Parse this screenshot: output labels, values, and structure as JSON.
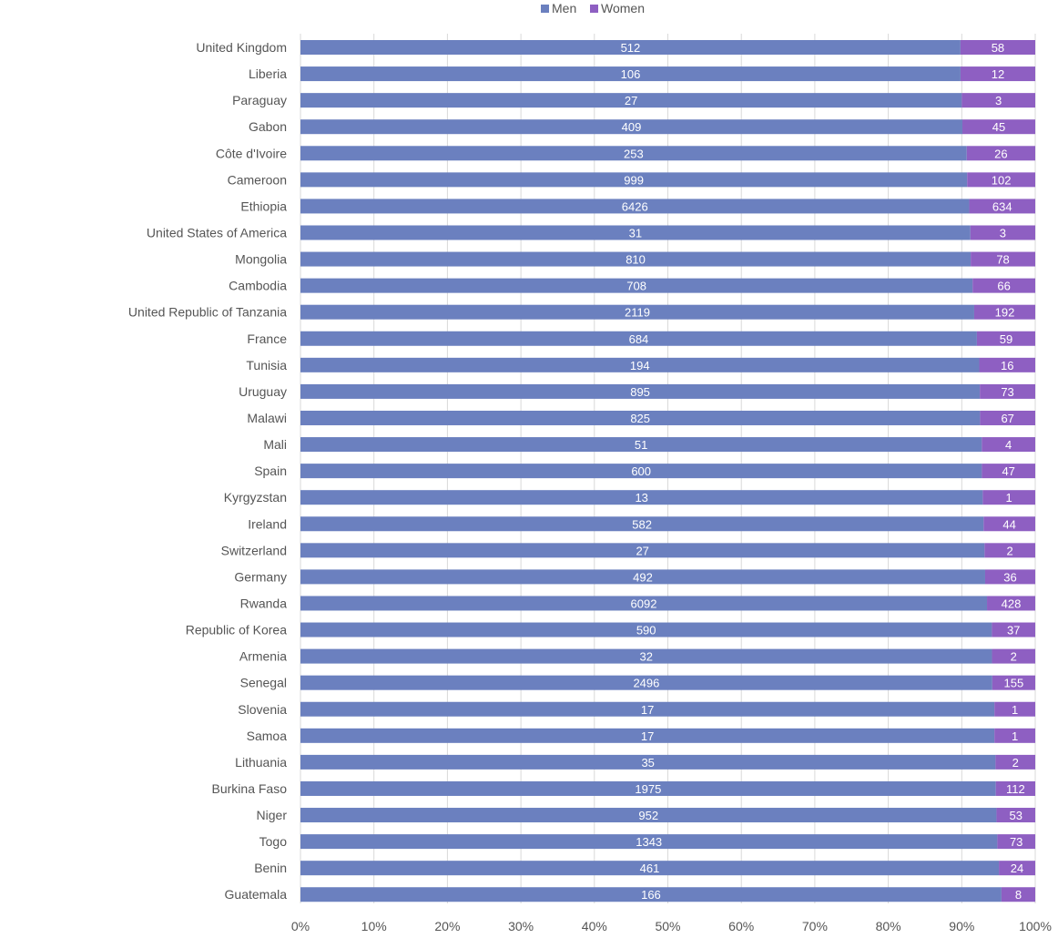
{
  "colors": {
    "men": "#6b80bf",
    "women": "#8e5fc2",
    "grid": "#d9d9d9",
    "text": "#555555"
  },
  "chart_data": {
    "type": "bar",
    "orientation": "horizontal",
    "stacking": "percent",
    "legend": {
      "position": "top",
      "entries": [
        "Men",
        "Women"
      ]
    },
    "grid": true,
    "xlim": [
      0,
      100
    ],
    "x_ticks": [
      "0%",
      "10%",
      "20%",
      "30%",
      "40%",
      "50%",
      "60%",
      "70%",
      "80%",
      "90%",
      "100%"
    ],
    "categories": [
      "United Kingdom",
      "Liberia",
      "Paraguay",
      "Gabon",
      "Côte d'Ivoire",
      "Cameroon",
      "Ethiopia",
      "United States of America",
      "Mongolia",
      "Cambodia",
      "United Republic of Tanzania",
      "France",
      "Tunisia",
      "Uruguay",
      "Malawi",
      "Mali",
      "Spain",
      "Kyrgyzstan",
      "Ireland",
      "Switzerland",
      "Germany",
      "Rwanda",
      "Republic of Korea",
      "Armenia",
      "Senegal",
      "Slovenia",
      "Samoa",
      "Lithuania",
      "Burkina Faso",
      "Niger",
      "Togo",
      "Benin",
      "Guatemala"
    ],
    "series": [
      {
        "name": "Men",
        "values": [
          512,
          106,
          27,
          409,
          253,
          999,
          6426,
          31,
          810,
          708,
          2119,
          684,
          194,
          895,
          825,
          51,
          600,
          13,
          582,
          27,
          492,
          6092,
          590,
          32,
          2496,
          17,
          17,
          35,
          1975,
          952,
          1343,
          461,
          166
        ]
      },
      {
        "name": "Women",
        "values": [
          58,
          12,
          3,
          45,
          26,
          102,
          634,
          3,
          78,
          66,
          192,
          59,
          16,
          73,
          67,
          4,
          47,
          1,
          44,
          2,
          36,
          428,
          37,
          2,
          155,
          1,
          1,
          2,
          112,
          53,
          73,
          24,
          8
        ]
      }
    ]
  }
}
